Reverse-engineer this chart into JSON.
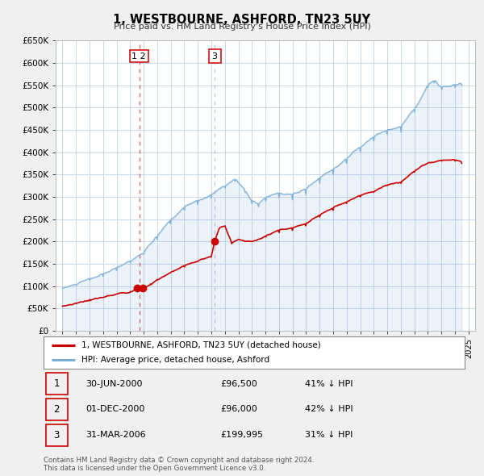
{
  "title": "1, WESTBOURNE, ASHFORD, TN23 5UY",
  "subtitle": "Price paid vs. HM Land Registry's House Price Index (HPI)",
  "bg_color": "#f0f0f0",
  "plot_bg_color": "#ffffff",
  "plot_fill_color": "#ddeeff",
  "grid_color": "#c8d8ec",
  "red_color": "#cc0000",
  "blue_color": "#7aaed6",
  "ylim": [
    0,
    650000
  ],
  "xlim_left": 1994.5,
  "xlim_right": 2025.5,
  "legend_label_red": "1, WESTBOURNE, ASHFORD, TN23 5UY (detached house)",
  "legend_label_blue": "HPI: Average price, detached house, Ashford",
  "transactions": [
    {
      "num": 1,
      "date": "30-JUN-2000",
      "price": "£96,500",
      "hpi": "41% ↓ HPI",
      "x_year": 2000.5,
      "y_val": 96500
    },
    {
      "num": 2,
      "date": "01-DEC-2000",
      "price": "£96,000",
      "hpi": "42% ↓ HPI",
      "x_year": 2000.92,
      "y_val": 96000
    },
    {
      "num": 3,
      "date": "31-MAR-2006",
      "price": "£199,995",
      "hpi": "31% ↓ HPI",
      "x_year": 2006.25,
      "y_val": 199995
    }
  ],
  "vline1_x": 2000.7,
  "vline3_x": 2006.25,
  "footnote": "Contains HM Land Registry data © Crown copyright and database right 2024.\nThis data is licensed under the Open Government Licence v3.0."
}
